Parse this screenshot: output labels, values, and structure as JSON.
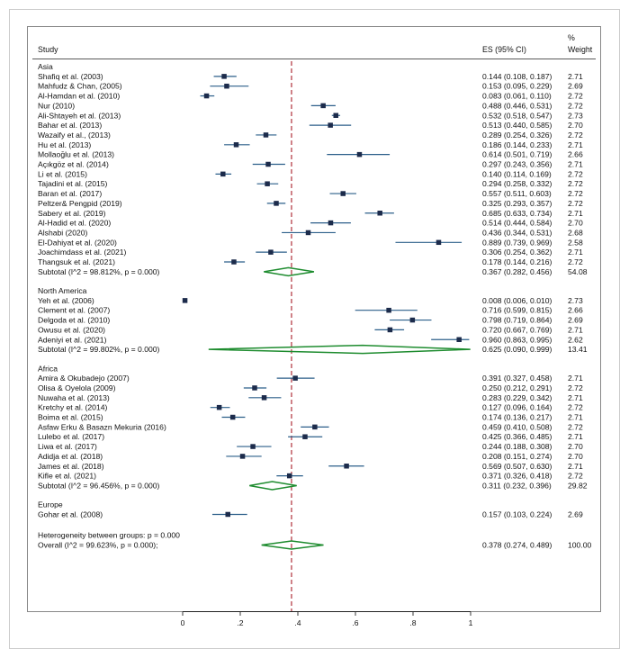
{
  "chart_data": {
    "type": "forest",
    "headers": {
      "study": "Study",
      "es": "ES (95% CI)",
      "weight_top": "%",
      "weight": "Weight"
    },
    "x_ticks": [
      {
        "value": 0,
        "label": "0"
      },
      {
        "value": 0.2,
        "label": ".2"
      },
      {
        "value": 0.4,
        "label": ".4"
      },
      {
        "value": 0.6,
        "label": ".6"
      },
      {
        "value": 0.8,
        "label": ".8"
      },
      {
        "value": 1,
        "label": "1"
      }
    ],
    "xlim": [
      0,
      1
    ],
    "overall_line": 0.378,
    "colors": {
      "marker": "#1c2b4b",
      "ci": "#2c5f8a",
      "diamond": "#1e8c2f",
      "refline": "#b0303a"
    },
    "groups": [
      {
        "name": "Asia",
        "studies": [
          {
            "study": "Shafiq et al. (2003)",
            "es": 0.144,
            "lo": 0.108,
            "hi": 0.187,
            "es_text": "0.144 (0.108, 0.187)",
            "weight": "2.71"
          },
          {
            "study": "Mahfudz & Chan, (2005)",
            "es": 0.153,
            "lo": 0.095,
            "hi": 0.229,
            "es_text": "0.153 (0.095, 0.229)",
            "weight": "2.69"
          },
          {
            "study": "Al-Hamdan et al. (2010)",
            "es": 0.083,
            "lo": 0.061,
            "hi": 0.11,
            "es_text": "0.083 (0.061, 0.110)",
            "weight": "2.72"
          },
          {
            "study": "Nur (2010)",
            "es": 0.488,
            "lo": 0.446,
            "hi": 0.531,
            "es_text": "0.488 (0.446, 0.531)",
            "weight": "2.72"
          },
          {
            "study": "Ali-Shtayeh et al. (2013)",
            "es": 0.532,
            "lo": 0.518,
            "hi": 0.547,
            "es_text": "0.532 (0.518, 0.547)",
            "weight": "2.73"
          },
          {
            "study": "Bahar et al. (2013)",
            "es": 0.513,
            "lo": 0.44,
            "hi": 0.585,
            "es_text": "0.513 (0.440, 0.585)",
            "weight": "2.70"
          },
          {
            "study": "Wazaify et al., (2013)",
            "es": 0.289,
            "lo": 0.254,
            "hi": 0.326,
            "es_text": "0.289 (0.254, 0.326)",
            "weight": "2.72"
          },
          {
            "study": "Hu et al. (2013)",
            "es": 0.186,
            "lo": 0.144,
            "hi": 0.233,
            "es_text": "0.186 (0.144, 0.233)",
            "weight": "2.71"
          },
          {
            "study": "Mollaoğlu et al. (2013)",
            "es": 0.614,
            "lo": 0.501,
            "hi": 0.719,
            "es_text": "0.614 (0.501, 0.719)",
            "weight": "2.66"
          },
          {
            "study": "Açıkgöz et al. (2014)",
            "es": 0.297,
            "lo": 0.243,
            "hi": 0.356,
            "es_text": "0.297 (0.243, 0.356)",
            "weight": "2.71"
          },
          {
            "study": "Li et al. (2015)",
            "es": 0.14,
            "lo": 0.114,
            "hi": 0.169,
            "es_text": "0.140 (0.114, 0.169)",
            "weight": "2.72"
          },
          {
            "study": "Tajadini et al. (2015)",
            "es": 0.294,
            "lo": 0.258,
            "hi": 0.332,
            "es_text": "0.294 (0.258, 0.332)",
            "weight": "2.72"
          },
          {
            "study": "Baran et al. (2017)",
            "es": 0.557,
            "lo": 0.511,
            "hi": 0.603,
            "es_text": "0.557 (0.511, 0.603)",
            "weight": "2.72"
          },
          {
            "study": "Peltzer& Pengpid (2019)",
            "es": 0.325,
            "lo": 0.293,
            "hi": 0.357,
            "es_text": "0.325 (0.293, 0.357)",
            "weight": "2.72"
          },
          {
            "study": "Sabery et al. (2019)",
            "es": 0.685,
            "lo": 0.633,
            "hi": 0.734,
            "es_text": "0.685 (0.633, 0.734)",
            "weight": "2.71"
          },
          {
            "study": "Al-Hadid et al. (2020)",
            "es": 0.514,
            "lo": 0.444,
            "hi": 0.584,
            "es_text": "0.514 (0.444, 0.584)",
            "weight": "2.70"
          },
          {
            "study": "Alshabi (2020)",
            "es": 0.436,
            "lo": 0.344,
            "hi": 0.531,
            "es_text": "0.436 (0.344, 0.531)",
            "weight": "2.68"
          },
          {
            "study": "El-Dahiyat et al. (2020)",
            "es": 0.889,
            "lo": 0.739,
            "hi": 0.969,
            "es_text": "0.889 (0.739, 0.969)",
            "weight": "2.58"
          },
          {
            "study": "Joachimdass et al. (2021)",
            "es": 0.306,
            "lo": 0.254,
            "hi": 0.362,
            "es_text": "0.306 (0.254, 0.362)",
            "weight": "2.71"
          },
          {
            "study": "Thangsuk et al. (2021)",
            "es": 0.178,
            "lo": 0.144,
            "hi": 0.216,
            "es_text": "0.178 (0.144, 0.216)",
            "weight": "2.72"
          }
        ],
        "subtotal": {
          "label": "Subtotal  (I^2 = 98.812%, p = 0.000)",
          "es": 0.367,
          "lo": 0.282,
          "hi": 0.456,
          "es_text": "0.367 (0.282, 0.456)",
          "weight": "54.08"
        }
      },
      {
        "name": "North America",
        "studies": [
          {
            "study": "Yeh et al. (2006)",
            "es": 0.008,
            "lo": 0.006,
            "hi": 0.01,
            "es_text": "0.008 (0.006, 0.010)",
            "weight": "2.73"
          },
          {
            "study": "Clement et al. (2007)",
            "es": 0.716,
            "lo": 0.599,
            "hi": 0.815,
            "es_text": "0.716 (0.599, 0.815)",
            "weight": "2.66"
          },
          {
            "study": "Delgoda et al. (2010)",
            "es": 0.798,
            "lo": 0.719,
            "hi": 0.864,
            "es_text": "0.798 (0.719, 0.864)",
            "weight": "2.69"
          },
          {
            "study": "Owusu et al. (2020)",
            "es": 0.72,
            "lo": 0.667,
            "hi": 0.769,
            "es_text": "0.720 (0.667, 0.769)",
            "weight": "2.71"
          },
          {
            "study": "Adeniyi et al. (2021)",
            "es": 0.96,
            "lo": 0.863,
            "hi": 0.995,
            "es_text": "0.960 (0.863, 0.995)",
            "weight": "2.62"
          }
        ],
        "subtotal": {
          "label": "Subtotal  (I^2 = 99.802%, p = 0.000)",
          "es": 0.625,
          "lo": 0.09,
          "hi": 0.999,
          "es_text": "0.625 (0.090, 0.999)",
          "weight": "13.41"
        }
      },
      {
        "name": "Africa",
        "studies": [
          {
            "study": "Amira & Okubadejo (2007)",
            "es": 0.391,
            "lo": 0.327,
            "hi": 0.458,
            "es_text": "0.391 (0.327, 0.458)",
            "weight": "2.71"
          },
          {
            "study": "Olisa & Oyelola (2009)",
            "es": 0.25,
            "lo": 0.212,
            "hi": 0.291,
            "es_text": "0.250 (0.212, 0.291)",
            "weight": "2.72"
          },
          {
            "study": "Nuwaha et al. (2013)",
            "es": 0.283,
            "lo": 0.229,
            "hi": 0.342,
            "es_text": "0.283 (0.229, 0.342)",
            "weight": "2.71"
          },
          {
            "study": "Kretchy et al. (2014)",
            "es": 0.127,
            "lo": 0.096,
            "hi": 0.164,
            "es_text": "0.127 (0.096, 0.164)",
            "weight": "2.72"
          },
          {
            "study": "Boima et al. (2015)",
            "es": 0.174,
            "lo": 0.136,
            "hi": 0.217,
            "es_text": "0.174 (0.136, 0.217)",
            "weight": "2.71"
          },
          {
            "study": "Asfaw Erku & Basazn Mekuria (2016)",
            "es": 0.459,
            "lo": 0.41,
            "hi": 0.508,
            "es_text": "0.459 (0.410, 0.508)",
            "weight": "2.72"
          },
          {
            "study": "Lulebo et al. (2017)",
            "es": 0.425,
            "lo": 0.366,
            "hi": 0.485,
            "es_text": "0.425 (0.366, 0.485)",
            "weight": "2.71"
          },
          {
            "study": "Liwa et al. (2017)",
            "es": 0.244,
            "lo": 0.188,
            "hi": 0.308,
            "es_text": "0.244 (0.188, 0.308)",
            "weight": "2.70"
          },
          {
            "study": "Adidja et al. (2018)",
            "es": 0.208,
            "lo": 0.151,
            "hi": 0.274,
            "es_text": "0.208 (0.151, 0.274)",
            "weight": "2.70"
          },
          {
            "study": "James et al. (2018)",
            "es": 0.569,
            "lo": 0.507,
            "hi": 0.63,
            "es_text": "0.569 (0.507, 0.630)",
            "weight": "2.71"
          },
          {
            "study": "Kifle et al. (2021)",
            "es": 0.371,
            "lo": 0.326,
            "hi": 0.418,
            "es_text": "0.371 (0.326, 0.418)",
            "weight": "2.72"
          }
        ],
        "subtotal": {
          "label": "Subtotal  (I^2 = 96.456%, p = 0.000)",
          "es": 0.311,
          "lo": 0.232,
          "hi": 0.396,
          "es_text": "0.311 (0.232, 0.396)",
          "weight": "29.82"
        }
      },
      {
        "name": "Europe",
        "studies": [
          {
            "study": "Gohar et al. (2008)",
            "es": 0.157,
            "lo": 0.103,
            "hi": 0.224,
            "es_text": "0.157 (0.103, 0.224)",
            "weight": "2.69"
          }
        ],
        "subtotal": null
      }
    ],
    "heterogeneity": "Heterogeneity between groups: p = 0.000",
    "overall": {
      "label": "Overall  (I^2 = 99.623%, p = 0.000);",
      "es": 0.378,
      "lo": 0.274,
      "hi": 0.489,
      "es_text": "0.378 (0.274, 0.489)",
      "weight": "100.00"
    }
  }
}
